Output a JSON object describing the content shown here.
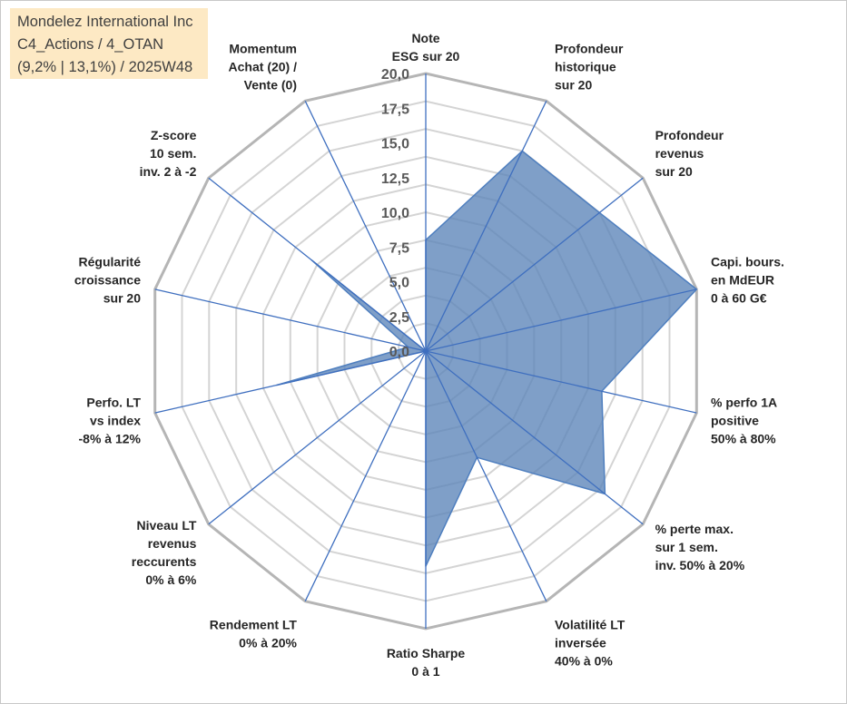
{
  "title_box": {
    "line1": "Mondelez International Inc",
    "line2": "C4_Actions / 4_OTAN",
    "line3": "(9,2% | 13,1%) / 2025W48"
  },
  "chart_data": {
    "type": "radar",
    "title": "Mondelez International Inc",
    "rmin": 0,
    "rmax": 20,
    "tick_step": 2.5,
    "tick_labels": [
      "0,0",
      "2,5",
      "5,0",
      "7,5",
      "10,0",
      "12,5",
      "15,0",
      "17,5",
      "20,0"
    ],
    "grid_rings": 10,
    "categories": [
      [
        "Note",
        "ESG sur 20"
      ],
      [
        "Profondeur",
        "historique",
        "sur 20"
      ],
      [
        "Profondeur",
        "revenus",
        "sur 20"
      ],
      [
        "Capi. bours.",
        "en MdEUR",
        "0 à 60 G€"
      ],
      [
        "% perfo 1A",
        "positive",
        "50% à 80%"
      ],
      [
        "% perte max.",
        "sur 1 sem.",
        "inv. 50% à 20%"
      ],
      [
        "Volatilité LT",
        "inversée",
        "40% à 0%"
      ],
      [
        "Ratio Sharpe",
        "0 à 1"
      ],
      [
        "Rendement LT",
        "0% à 20%"
      ],
      [
        "Niveau LT",
        "revenus",
        "reccurents",
        "0% à 6%"
      ],
      [
        "Perfo. LT",
        "vs index",
        "-8% à 12%"
      ],
      [
        "Régularité",
        "croissance",
        "sur 20"
      ],
      [
        "Z-score",
        "10 sem.",
        "inv. 2 à -2"
      ],
      [
        "Momentum",
        "Achat (20) /",
        "Vente (0)"
      ]
    ],
    "series": [
      {
        "name": "Mondelez International Inc",
        "values": [
          8.0,
          16.0,
          16.0,
          20.0,
          13.0,
          16.5,
          8.5,
          15.5,
          0.0,
          0.0,
          11.0,
          1.3,
          10.5,
          0.0
        ]
      }
    ],
    "colors": {
      "fill": "#5b84b8",
      "fill_opacity": 0.78,
      "outline": "#4f7fbf",
      "spoke": "#3f6fbf",
      "grid_outer": "#b5b5b5",
      "grid_inner": "#d4d4d4"
    }
  }
}
